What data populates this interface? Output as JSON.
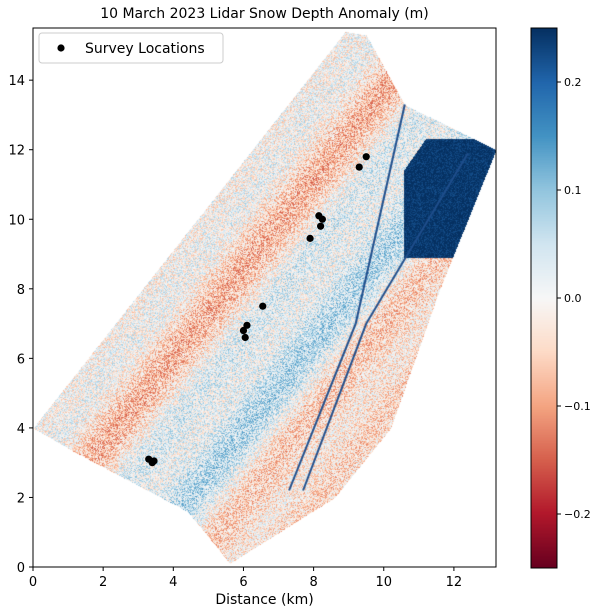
{
  "chart_data": {
    "type": "heatmap",
    "title": "10 March 2023 Lidar Snow Depth Anomaly (m)",
    "xlabel": "Distance (km)",
    "ylabel": "",
    "xlim": [
      0,
      13.2
    ],
    "ylim": [
      0,
      15.5
    ],
    "xticks": [
      "0",
      "2",
      "4",
      "6",
      "8",
      "10",
      "12"
    ],
    "yticks": [
      "0",
      "2",
      "4",
      "6",
      "8",
      "10",
      "12",
      "14"
    ],
    "grid": false,
    "colormap": "RdBu",
    "colorbar": {
      "range": [
        -0.25,
        0.25
      ],
      "ticks": [
        "0.2",
        "0.1",
        "0.0",
        "−0.1",
        "−0.2"
      ],
      "tick_values": [
        0.2,
        0.1,
        0.0,
        -0.1,
        -0.2
      ]
    },
    "colormap_stops": [
      "#67001f",
      "#b2182b",
      "#d6604d",
      "#f4a582",
      "#fddbc7",
      "#f7f7f7",
      "#d1e5f0",
      "#92c5de",
      "#4393c3",
      "#2166ac",
      "#053061"
    ],
    "footprint_km": [
      [
        0,
        4.0
      ],
      [
        8.9,
        15.4
      ],
      [
        9.5,
        15.3
      ],
      [
        10.6,
        13.3
      ],
      [
        13.2,
        12.0
      ],
      [
        11.6,
        8.0
      ],
      [
        10.2,
        4.0
      ],
      [
        8.6,
        2.0
      ],
      [
        5.6,
        0.1
      ],
      [
        5.3,
        0.5
      ],
      [
        4.4,
        1.6
      ],
      [
        1.2,
        3.3
      ]
    ],
    "legend": {
      "label": "Survey Locations",
      "position": "top-left"
    },
    "series": [
      {
        "name": "Survey Locations",
        "type": "scatter",
        "color": "#000000",
        "points": [
          [
            9.5,
            11.8
          ],
          [
            9.3,
            11.5
          ],
          [
            8.15,
            10.1
          ],
          [
            8.25,
            10.0
          ],
          [
            8.2,
            9.8
          ],
          [
            7.9,
            9.45
          ],
          [
            6.55,
            7.5
          ],
          [
            6.1,
            6.95
          ],
          [
            6.0,
            6.8
          ],
          [
            6.05,
            6.6
          ],
          [
            3.3,
            3.1
          ],
          [
            3.4,
            3.0
          ],
          [
            3.45,
            3.05
          ]
        ]
      }
    ]
  }
}
